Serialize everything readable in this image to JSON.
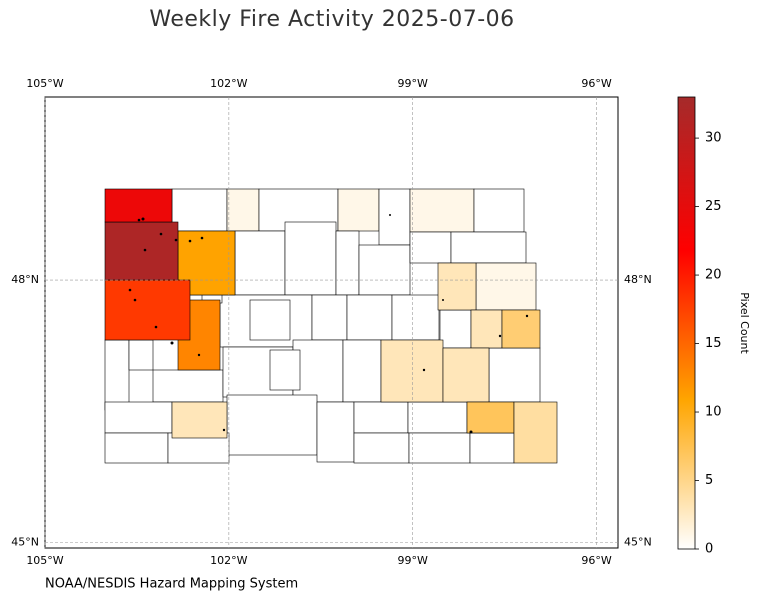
{
  "map": {
    "title": "Weekly Fire Activity 2025-07-06",
    "source": "NOAA/NESDIS Hazard Mapping System",
    "lonlim": [
      -105,
      -95.65
    ],
    "latlim": [
      44.94,
      50.09
    ],
    "lon_ticks": [
      {
        "value": -105,
        "label": "105°W"
      },
      {
        "value": -102,
        "label": "102°W"
      },
      {
        "value": -99,
        "label": "99°W"
      },
      {
        "value": -96,
        "label": "96°W"
      }
    ],
    "lat_ticks": [
      {
        "value": 48,
        "label": "48°N"
      },
      {
        "value": 45,
        "label": "45°N"
      }
    ],
    "grid": true,
    "colorbar": {
      "label": "Pixel Count",
      "lim": [
        0,
        33
      ],
      "ticks": [
        0,
        5,
        10,
        15,
        20,
        25,
        30
      ]
    },
    "region_values": [
      0,
      1,
      0,
      1,
      0,
      1,
      0,
      0,
      0,
      0,
      0,
      0,
      0,
      1,
      0,
      0,
      0,
      0,
      0,
      0,
      0,
      0,
      0,
      0,
      0,
      0,
      0,
      0,
      0,
      0,
      0,
      0,
      0,
      0,
      0,
      0,
      0,
      0,
      0,
      0,
      3,
      3,
      6,
      3,
      3,
      3,
      7,
      4,
      13,
      11,
      18,
      32,
      24
    ]
  }
}
